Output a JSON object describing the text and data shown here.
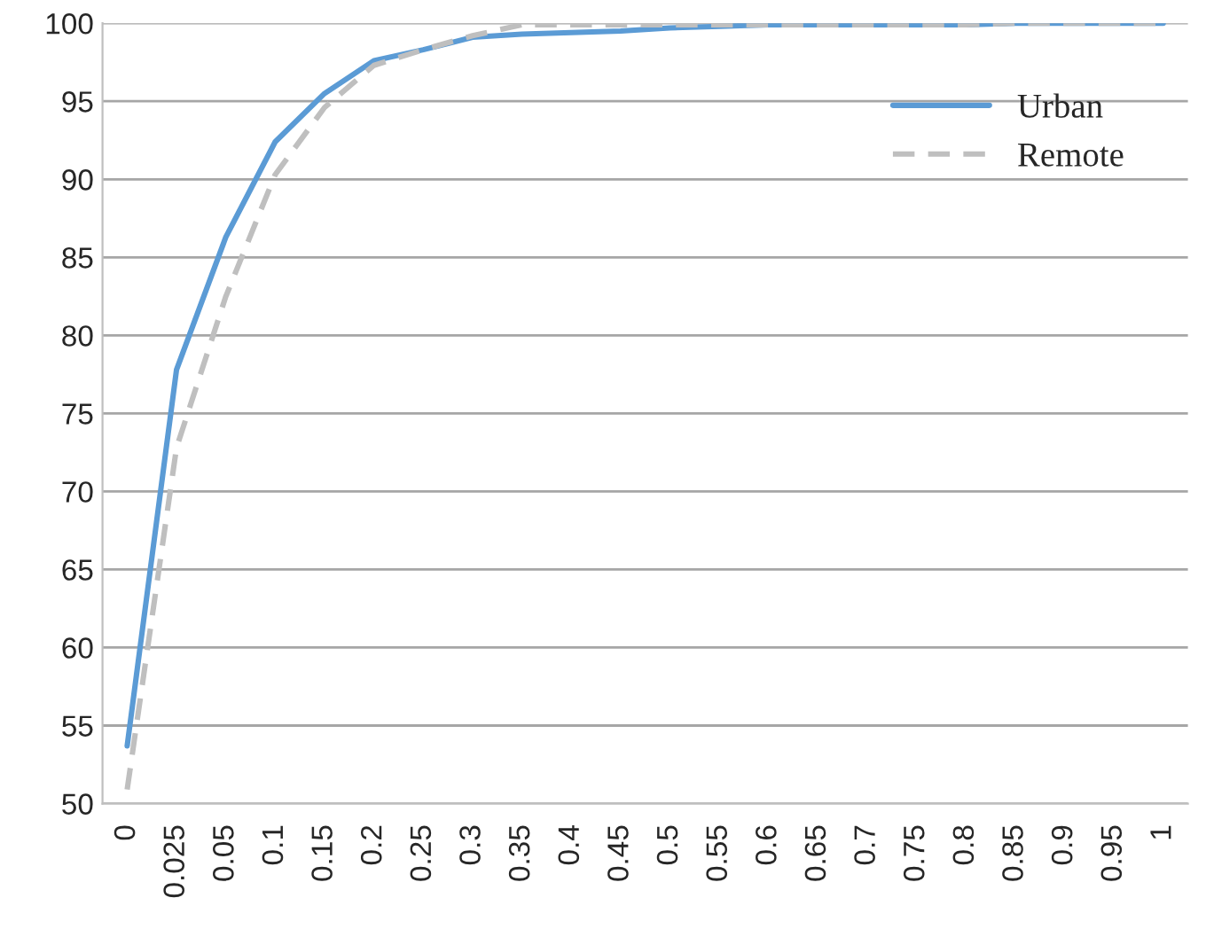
{
  "chart_data": {
    "type": "line",
    "categories": [
      "0",
      "0.025",
      "0.05",
      "0.1",
      "0.15",
      "0.2",
      "0.25",
      "0.3",
      "0.35",
      "0.4",
      "0.45",
      "0.5",
      "0.55",
      "0.6",
      "0.65",
      "0.7",
      "0.75",
      "0.8",
      "0.85",
      "0.9",
      "0.95",
      "1"
    ],
    "series": [
      {
        "name": "Urban",
        "color": "#5b9bd5",
        "line_style": "solid",
        "values": [
          53.7,
          77.8,
          86.3,
          92.4,
          95.5,
          97.6,
          98.3,
          99.1,
          99.3,
          99.4,
          99.5,
          99.7,
          99.8,
          99.9,
          99.9,
          99.9,
          99.9,
          99.9,
          100,
          100,
          100,
          100
        ]
      },
      {
        "name": "Remote",
        "color": "#bfbfbf",
        "line_style": "dashed",
        "values": [
          50.9,
          72.8,
          82.5,
          90.3,
          94.6,
          97.3,
          98.3,
          99.2,
          99.9,
          99.9,
          99.9,
          99.9,
          99.9,
          99.9,
          99.9,
          99.9,
          99.9,
          99.9,
          100,
          100,
          100,
          100
        ]
      }
    ],
    "ylim": [
      50,
      100
    ],
    "yticks": [
      50,
      55,
      60,
      65,
      70,
      75,
      80,
      85,
      90,
      95,
      100
    ],
    "grid": "y",
    "legend": "top right",
    "marker": "none"
  }
}
